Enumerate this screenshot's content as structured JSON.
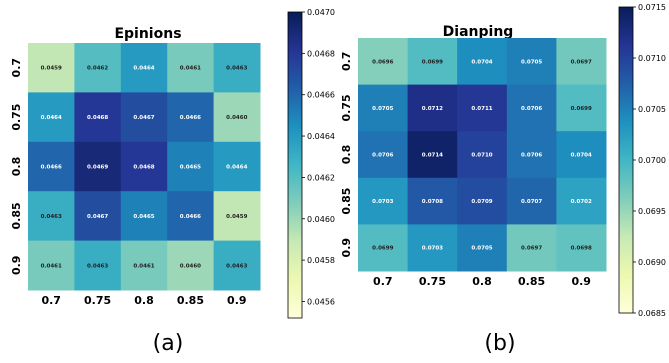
{
  "chart_data": [
    {
      "type": "heatmap",
      "title": "Epinions",
      "x_categories": [
        "0.7",
        "0.75",
        "0.8",
        "0.85",
        "0.9"
      ],
      "y_categories": [
        "0.7",
        "0.75",
        "0.8",
        "0.85",
        "0.9"
      ],
      "values": [
        [
          0.0459,
          0.0462,
          0.0464,
          0.0461,
          0.0463
        ],
        [
          0.0464,
          0.0468,
          0.0467,
          0.0466,
          0.046
        ],
        [
          0.0466,
          0.0469,
          0.0468,
          0.0465,
          0.0464
        ],
        [
          0.0463,
          0.0467,
          0.0465,
          0.0466,
          0.0459
        ],
        [
          0.0461,
          0.0463,
          0.0461,
          0.046,
          0.0463
        ]
      ],
      "labels": [
        [
          "0.0459",
          "0.0462",
          "0.0464",
          "0.0461",
          "0.0463"
        ],
        [
          "0.0464",
          "0.0468",
          "0.0467",
          "0.0466",
          "0.0460"
        ],
        [
          "0.0466",
          "0.0469",
          "0.0468",
          "0.0465",
          "0.0464"
        ],
        [
          "0.0463",
          "0.0467",
          "0.0465",
          "0.0466",
          "0.0459"
        ],
        [
          "0.0461",
          "0.0463",
          "0.0461",
          "0.0460",
          "0.0463"
        ]
      ],
      "colorbar": {
        "colormap": "YlGnBu",
        "range": [
          0.04552,
          0.047
        ],
        "ticks": [
          "0.0470",
          "0.0468",
          "0.0466",
          "0.0464",
          "0.0462",
          "0.0460",
          "0.0458",
          "0.0456"
        ]
      },
      "panel_label": "(a)"
    },
    {
      "type": "heatmap",
      "title": "Dianping",
      "x_categories": [
        "0.7",
        "0.75",
        "0.8",
        "0.85",
        "0.9"
      ],
      "y_categories": [
        "0.7",
        "0.75",
        "0.8",
        "0.85",
        "0.9"
      ],
      "values": [
        [
          0.0696,
          0.0699,
          0.0704,
          0.0705,
          0.0697
        ],
        [
          0.0705,
          0.0712,
          0.0711,
          0.0706,
          0.0699
        ],
        [
          0.0706,
          0.0714,
          0.071,
          0.0706,
          0.0704
        ],
        [
          0.0703,
          0.0708,
          0.0709,
          0.0707,
          0.0702
        ],
        [
          0.0699,
          0.0703,
          0.0705,
          0.0697,
          0.0698
        ]
      ],
      "labels": [
        [
          "0.0696",
          "0.0699",
          "0.0704",
          "0.0705",
          "0.0697"
        ],
        [
          "0.0705",
          "0.0712",
          "0.0711",
          "0.0706",
          "0.0699"
        ],
        [
          "0.0706",
          "0.0714",
          "0.0710",
          "0.0706",
          "0.0704"
        ],
        [
          "0.0703",
          "0.0708",
          "0.0709",
          "0.0707",
          "0.0702"
        ],
        [
          "0.0699",
          "0.0703",
          "0.0705",
          "0.0697",
          "0.0698"
        ]
      ],
      "colorbar": {
        "colormap": "YlGnBu",
        "range": [
          0.0685,
          0.0715
        ],
        "ticks": [
          "0.0715",
          "0.0710",
          "0.0705",
          "0.0700",
          "0.0695",
          "0.0690",
          "0.0685"
        ]
      },
      "panel_label": "(b)"
    }
  ]
}
